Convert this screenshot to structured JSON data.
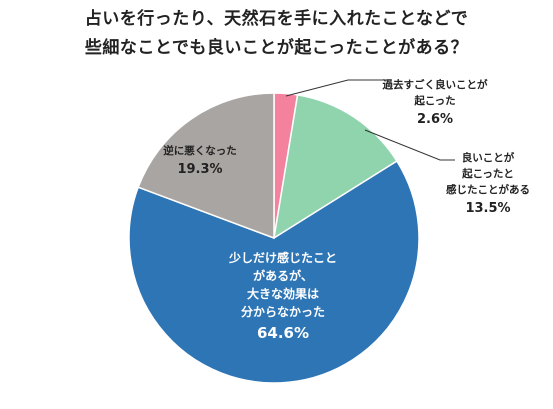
{
  "chart_data": {
    "type": "pie",
    "title_lines": [
      "占いを行ったり、天然石を手に入れたことなどで",
      "些細なことでも良いことが起こったことがある？"
    ],
    "slices": [
      {
        "label_lines": [
          "過去すごく良いことが",
          "起こった"
        ],
        "value": 2.6,
        "value_label": "2.6%",
        "color": "#f4829e"
      },
      {
        "label_lines": [
          "良いことが",
          "起こったと",
          "感じたことがある"
        ],
        "value": 13.5,
        "value_label": "13.5%",
        "color": "#8fd4ad"
      },
      {
        "label_lines": [
          "少しだけ感じたこと",
          "があるが、",
          "大きな効果は",
          "分からなかった"
        ],
        "value": 64.6,
        "value_label": "64.6%",
        "color": "#2e75b6"
      },
      {
        "label_lines": [
          "逆に悪くなった"
        ],
        "value": 19.3,
        "value_label": "19.3%",
        "color": "#a9a5a3"
      }
    ]
  }
}
